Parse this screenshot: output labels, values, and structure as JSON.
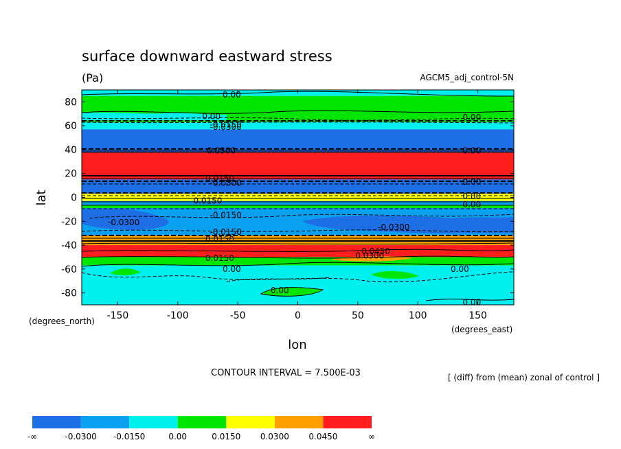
{
  "chart_data": {
    "type": "heatmap",
    "title": "surface downward eastward stress",
    "units": "(Pa)",
    "dataset": "AGCM5_adj_control-5N",
    "xlabel": "lon",
    "ylabel": "lat",
    "x_units": "(degrees_east)",
    "y_units": "(degrees_north)",
    "xlim": [
      -180,
      180
    ],
    "ylim": [
      -90,
      90
    ],
    "x_ticks": [
      -150,
      -100,
      -50,
      0,
      50,
      100,
      150
    ],
    "y_ticks": [
      80,
      60,
      40,
      20,
      0,
      -20,
      -40,
      -60,
      -80
    ],
    "contour_interval": "CONTOUR INTERVAL = 7.500E-03",
    "note": "[ (diff) from (mean) zonal of control ]",
    "colorbar": {
      "labels": [
        "-∞",
        "-0.0300",
        "-0.0150",
        "0.00",
        "0.0150",
        "0.0300",
        "0.0450",
        "∞"
      ],
      "colors": [
        "#1e6ee6",
        "#0aa0f0",
        "#00f0f0",
        "#00e600",
        "#ffff00",
        "#ffa000",
        "#ff1e1e"
      ]
    },
    "bands": [
      {
        "lat_range": [
          85,
          90
        ],
        "level": "-0.015..0"
      },
      {
        "lat_range": [
          63,
          85
        ],
        "level": "0..0.015"
      },
      {
        "lat_range": [
          57,
          63
        ],
        "level": "-0.015..0"
      },
      {
        "lat_range": [
          38,
          57
        ],
        "level": "< -0.03"
      },
      {
        "lat_range": [
          15,
          38
        ],
        "level": "> 0.045"
      },
      {
        "lat_range": [
          3,
          15
        ],
        "level": "< -0.03"
      },
      {
        "lat_range": [
          -3,
          3
        ],
        "level": "0..0.03"
      },
      {
        "lat_range": [
          -32,
          -3
        ],
        "level": "-0.03..-0.015"
      },
      {
        "lat_range": [
          -40,
          -32
        ],
        "level": "> 0.03"
      },
      {
        "lat_range": [
          -50,
          -40
        ],
        "level": "> 0.045"
      },
      {
        "lat_range": [
          -57,
          -50
        ],
        "level": "0..0.015"
      },
      {
        "lat_range": [
          -90,
          -57
        ],
        "level": "-0.015..0"
      }
    ],
    "contour_labels": [
      {
        "text": "0.00",
        "lon": -55,
        "lat": 86
      },
      {
        "text": "0.00",
        "lon": -72,
        "lat": 68
      },
      {
        "text": "0.00",
        "lon": 145,
        "lat": 67
      },
      {
        "text": "-0.0150",
        "lon": -60,
        "lat": 61
      },
      {
        "text": "-0.0300",
        "lon": -60,
        "lat": 59
      },
      {
        "text": "-0.0300",
        "lon": -65,
        "lat": 39
      },
      {
        "text": "0.00",
        "lon": 145,
        "lat": 39
      },
      {
        "text": "0.0150",
        "lon": -65,
        "lat": 16
      },
      {
        "text": "-0.0300",
        "lon": -60,
        "lat": 12
      },
      {
        "text": "0.00",
        "lon": 145,
        "lat": 13
      },
      {
        "text": "0.00",
        "lon": 145,
        "lat": 1
      },
      {
        "text": "0.0150",
        "lon": -75,
        "lat": -3
      },
      {
        "text": "0.00",
        "lon": 145,
        "lat": -6
      },
      {
        "text": "-0.0150",
        "lon": -60,
        "lat": -15
      },
      {
        "text": "-0.0300",
        "lon": -145,
        "lat": -21
      },
      {
        "text": "-0.0300",
        "lon": 80,
        "lat": -25
      },
      {
        "text": "-0.0150",
        "lon": -60,
        "lat": -29
      },
      {
        "text": "0.0150",
        "lon": -65,
        "lat": -35
      },
      {
        "text": "0.0450",
        "lon": 65,
        "lat": -45
      },
      {
        "text": "0.0300",
        "lon": 60,
        "lat": -49
      },
      {
        "text": "0.0150",
        "lon": -65,
        "lat": -51
      },
      {
        "text": "0.00",
        "lon": -55,
        "lat": -60
      },
      {
        "text": "0.00",
        "lon": 135,
        "lat": -60
      },
      {
        "text": "0.00",
        "lon": -15,
        "lat": -78
      },
      {
        "text": "0.00",
        "lon": 145,
        "lat": -88
      }
    ]
  }
}
